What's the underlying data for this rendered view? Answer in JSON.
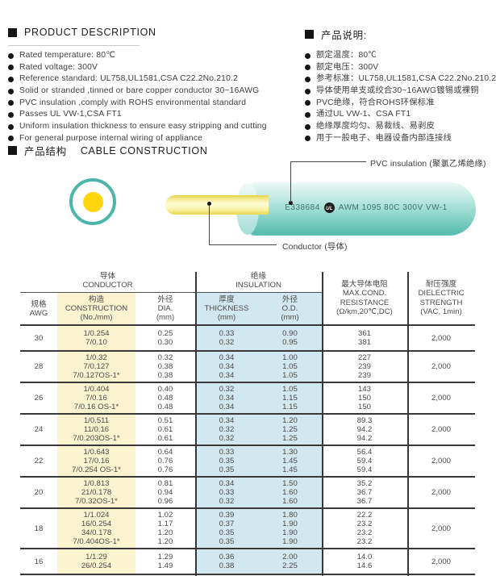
{
  "colors": {
    "accent_teal": "#4db6ab",
    "conductor_yellow": "#ffd60e",
    "construction_col_bg": "#faf3d0",
    "insulation_col_bg": "#d2e8f0"
  },
  "product_description": {
    "title": "PRODUCT DESCRIPTION",
    "items": [
      "Rated temperature: 80℃",
      "Rated voltage: 300V",
      "Reference standard: UL758,UL1581,CSA C22.2No.210.2",
      "Solid or stranded ,tinned or bare copper conductor 30~16AWG",
      "PVC insulation ,comply with ROHS environmental standard",
      "Passes UL VW-1,CSA FT1",
      "Uniform insulation thickness to ensure easy stripping and cutting",
      "For general purpose internal wiring of appliance"
    ]
  },
  "product_notes": {
    "title": "产品说明:",
    "items": [
      "额定温度：80℃",
      "额定电压：300V",
      "参考标准：UL758,UL1581,CSA C22.2No.210.2",
      "导体使用单支或绞合30~16AWG镀锡或裸铜",
      "PVC绝缘，符合ROHS环保标准",
      "通过UL VW-1、CSA FT1",
      "绝缘厚度均匀、易裁线、易剥皮",
      "用于一般电子、电器设备内部连接线"
    ]
  },
  "construction_section": {
    "title_cn": "产品结构",
    "title_en": "CABLE CONSTRUCTION",
    "insulation_label": "PVC insulation (聚氯乙烯绝缘)",
    "conductor_label": "Conductor (导体)",
    "cable_marking_prefix": "E338684",
    "ul_mark": "UL",
    "cable_marking_suffix": "AWM 1095 80C 300V VW-1"
  },
  "spec_table": {
    "groups": {
      "conductor_cn": "导体",
      "conductor_en": "CONDUCTOR",
      "insulation_cn": "绝缘",
      "insulation_en": "INSULATION"
    },
    "headers": {
      "awg": [
        "规格",
        "AWG"
      ],
      "construction": [
        "构造",
        "CONSTRUCTION",
        "(No./mm)"
      ],
      "dia": [
        "外径",
        "DIA.",
        "(mm)"
      ],
      "thickness": [
        "厚度",
        "THICKNESS",
        "(mm)"
      ],
      "od": [
        "外径",
        "O.D.",
        "(mm)"
      ],
      "resistance": [
        "最大导体电阻",
        "MAX.COND.",
        "RESISTANCE",
        "(Ω/km,20℃,DC)"
      ],
      "dielectric": [
        "耐压强度",
        "DIELECTRIC",
        "STRENGTH",
        "(VAC, 1min)"
      ]
    },
    "rows": [
      {
        "awg": "30",
        "construction": [
          "1/0.254",
          "7/0.10"
        ],
        "dia": [
          "0.25",
          "0.30"
        ],
        "thickness": [
          "0.33",
          "0.32"
        ],
        "od": [
          "0.90",
          "0.95"
        ],
        "resistance": [
          "361",
          "381"
        ],
        "dielectric": "2,000"
      },
      {
        "awg": "28",
        "construction": [
          "1/0.32",
          "7/0.127",
          "7/0.127OS-1*"
        ],
        "dia": [
          "0.32",
          "0.38",
          "0.38"
        ],
        "thickness": [
          "0.34",
          "0.34",
          "0.34"
        ],
        "od": [
          "1.00",
          "1.05",
          "1.05"
        ],
        "resistance": [
          "227",
          "239",
          "239"
        ],
        "dielectric": "2,000"
      },
      {
        "awg": "26",
        "construction": [
          "1/0.404",
          "7/0.16",
          "7/0.16 OS-1*"
        ],
        "dia": [
          "0.40",
          "0.48",
          "0.48"
        ],
        "thickness": [
          "0.32",
          "0.34",
          "0.34"
        ],
        "od": [
          "1.05",
          "1.15",
          "1.15"
        ],
        "resistance": [
          "143",
          "150",
          "150"
        ],
        "dielectric": "2,000"
      },
      {
        "awg": "24",
        "construction": [
          "1/0.511",
          "11/0.16",
          "7/0.203OS-1*"
        ],
        "dia": [
          "0.51",
          "0.61",
          "0.61"
        ],
        "thickness": [
          "0.34",
          "0.32",
          "0.32"
        ],
        "od": [
          "1.20",
          "1.25",
          "1.25"
        ],
        "resistance": [
          "89.3",
          "94.2",
          "94.2"
        ],
        "dielectric": "2,000"
      },
      {
        "awg": "22",
        "construction": [
          "1/0.643",
          "17/0.16",
          "7/0.254 OS-1*"
        ],
        "dia": [
          "0.64",
          "0.76",
          "0.76"
        ],
        "thickness": [
          "0.33",
          "0.35",
          "0.35"
        ],
        "od": [
          "1.30",
          "1.45",
          "1.45"
        ],
        "resistance": [
          "56.4",
          "59.4",
          "59.4"
        ],
        "dielectric": "2,000"
      },
      {
        "awg": "20",
        "construction": [
          "1/0.813",
          "21/0.178",
          "7/0.32OS-1*"
        ],
        "dia": [
          "0.81",
          "0.94",
          "0.96"
        ],
        "thickness": [
          "0.34",
          "0.33",
          "0.32"
        ],
        "od": [
          "1.50",
          "1.60",
          "1.60"
        ],
        "resistance": [
          "35.2",
          "36.7",
          "36.7"
        ],
        "dielectric": "2,000"
      },
      {
        "awg": "18",
        "construction": [
          "1/1.024",
          "16/0.254",
          "34/0.178",
          "7/0.404OS-1*"
        ],
        "dia": [
          "1.02",
          "1.17",
          "1.20",
          "1.20"
        ],
        "thickness": [
          "0.39",
          "0.37",
          "0.35",
          "0.35"
        ],
        "od": [
          "1.80",
          "1.90",
          "1.90",
          "1.90"
        ],
        "resistance": [
          "22.2",
          "23.2",
          "23.2",
          "23.2"
        ],
        "dielectric": "2,000"
      },
      {
        "awg": "16",
        "construction": [
          "1/1.29",
          "26/0.254"
        ],
        "dia": [
          "1.29",
          "1.49"
        ],
        "thickness": [
          "0.36",
          "0.38"
        ],
        "od": [
          "2.00",
          "2.25"
        ],
        "resistance": [
          "14.0",
          "14.6"
        ],
        "dielectric": "2,000"
      }
    ]
  }
}
